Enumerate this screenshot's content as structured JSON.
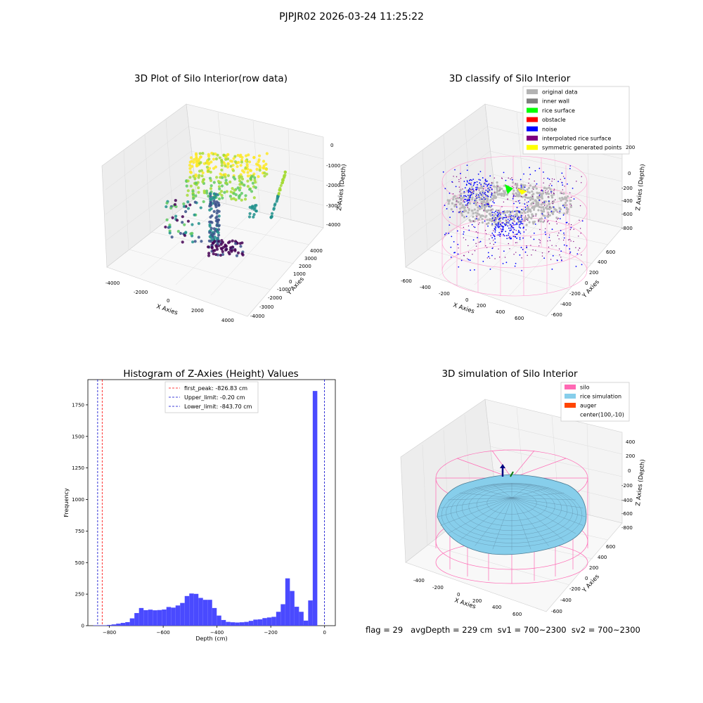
{
  "figure": {
    "suptitle": "PJPJR02 2026-03-24 11:25:22"
  },
  "panels": {
    "raw": {
      "title": "3D Plot of Silo Interior(row data)",
      "xlabel": "X Axies",
      "ylabel": "Y Axies",
      "zlabel": "Z Axies (Depth)",
      "xticks": [
        "-4000",
        "-2000",
        "0",
        "2000",
        "4000"
      ],
      "yticks": [
        "-4000",
        "-3000",
        "-2000",
        "-1000",
        "0",
        "1000",
        "2000",
        "3000",
        "4000"
      ],
      "zticks": [
        "0",
        "-1000",
        "-2000",
        "-3000",
        "-4000"
      ]
    },
    "classify": {
      "title": "3D classify of Silo Interior",
      "xlabel": "X Axies",
      "ylabel": "Y Axies",
      "zlabel": "Z Axies (Depth)",
      "xticks": [
        "-600",
        "-400",
        "-200",
        "0",
        "200",
        "400",
        "600"
      ],
      "yticks": [
        "-600",
        "-400",
        "-200",
        "0",
        "200",
        "400",
        "600"
      ],
      "zticks": [
        "200",
        "0",
        "-200",
        "-400",
        "-600",
        "-800"
      ],
      "legend": [
        {
          "label": "original data",
          "color": "#b3b3b3"
        },
        {
          "label": "inner wall",
          "color": "#808080"
        },
        {
          "label": "rice surface",
          "color": "#00ff00"
        },
        {
          "label": "obstacle",
          "color": "#ff0000"
        },
        {
          "label": "noise",
          "color": "#0000ff"
        },
        {
          "label": "interpolated rice surface",
          "color": "#800080"
        },
        {
          "label": "symmetric generated points",
          "color": "#ffff00"
        }
      ]
    },
    "simulation": {
      "title": "3D simulation of Silo Interior",
      "xlabel": "X Axies",
      "ylabel": "Y Axies",
      "zlabel": "Z Axies (Depth)",
      "xticks": [
        "-400",
        "-200",
        "0",
        "200",
        "400",
        "600"
      ],
      "yticks": [
        "-600",
        "-400",
        "-200",
        "0",
        "200",
        "400",
        "600"
      ],
      "zticks": [
        "400",
        "200",
        "0",
        "-200",
        "-400",
        "-600",
        "-800"
      ],
      "legend": [
        {
          "label": "silo",
          "color": "#ff69b4"
        },
        {
          "label": "rice simulation",
          "color": "#87ceeb"
        },
        {
          "label": "auger",
          "color": "#ff4500"
        },
        {
          "label": "center(100,-10)",
          "color": ""
        }
      ]
    }
  },
  "colors": {
    "histogram_bar": "#4a4aff",
    "first_peak_line": "#ff0000",
    "limit_line": "#0000cc"
  },
  "footer": {
    "text": "flag = 29   avgDepth = 229 cm  sv1 = 700~2300  sv2 = 700~2300"
  },
  "chart_data": {
    "type": "bar",
    "title": "Histogram of Z-Axies (Height) Values",
    "xlabel": "Depth (cm)",
    "ylabel": "Frequency",
    "xlim": [
      -880,
      40
    ],
    "ylim": [
      0,
      1950
    ],
    "xticks": [
      -800,
      -600,
      -400,
      -200,
      0
    ],
    "xtick_labels": [
      "−800",
      "−600",
      "−400",
      "−200",
      "0"
    ],
    "yticks": [
      0,
      250,
      500,
      750,
      1000,
      1250,
      1500,
      1750
    ],
    "bin_start": -860,
    "bin_width": 17,
    "values": [
      3,
      3,
      3,
      6,
      10,
      16,
      22,
      28,
      58,
      100,
      140,
      123,
      127,
      122,
      124,
      128,
      148,
      143,
      160,
      180,
      235,
      255,
      252,
      220,
      205,
      205,
      140,
      80,
      45,
      30,
      27,
      25,
      27,
      30,
      38,
      48,
      50,
      60,
      65,
      70,
      110,
      170,
      375,
      275,
      150,
      110,
      40,
      200,
      1860
    ],
    "vlines": [
      {
        "label": "first_peak: -826.83 cm",
        "x": -826.83,
        "color": "#ff0000"
      },
      {
        "label": "Upper_limit: -0.20 cm",
        "x": -0.2,
        "color": "#0000cc"
      },
      {
        "label": "Lower_limit: -843.70 cm",
        "x": -843.7,
        "color": "#0000cc"
      }
    ],
    "legend_position": "upper center"
  }
}
